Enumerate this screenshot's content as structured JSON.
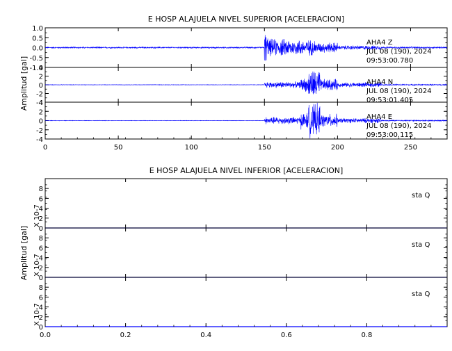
{
  "colors": {
    "trace": "#0000ff",
    "axis": "#000000",
    "background": "#ffffff"
  },
  "chart_data": [
    {
      "type": "line",
      "title": "E HOSP ALAJUELA NIVEL SUPERIOR [ACELERACION]",
      "ylabel": "Amplitud [gal]",
      "xlim": [
        0,
        275
      ],
      "x_ticks": [
        0,
        50,
        100,
        150,
        200,
        250
      ],
      "grid": false,
      "panels": [
        {
          "ylim": [
            -1,
            1
          ],
          "y_ticks": [
            "-1.0",
            "-0.5",
            "0.0",
            "0.5",
            "1.0"
          ],
          "label_lines": [
            "AHA4   Z",
            "JUL 08 (190), 2024",
            "09:53:00.780"
          ],
          "segments": [
            {
              "x": [
                0,
                150
              ],
              "amp": 0.04
            },
            {
              "x": [
                150,
                153
              ],
              "amp": 1.0
            },
            {
              "x": [
                153,
                168
              ],
              "amp": 0.5
            },
            {
              "x": [
                168,
                185
              ],
              "amp": 0.45
            },
            {
              "x": [
                185,
                200
              ],
              "amp": 0.3
            },
            {
              "x": [
                200,
                230
              ],
              "amp": 0.12
            },
            {
              "x": [
                230,
                275
              ],
              "amp": 0.05
            }
          ]
        },
        {
          "ylim": [
            -4,
            4
          ],
          "y_ticks": [
            "-4",
            "-2",
            "0",
            "2",
            "4"
          ],
          "label_lines": [
            "AHA4   N",
            "JUL 08 (190), 2024",
            "09:53:01.405"
          ],
          "segments": [
            {
              "x": [
                0,
                150
              ],
              "amp": 0.05
            },
            {
              "x": [
                150,
                175
              ],
              "amp": 0.8
            },
            {
              "x": [
                175,
                180
              ],
              "amp": 1.8
            },
            {
              "x": [
                180,
                188
              ],
              "amp": 4.0
            },
            {
              "x": [
                188,
                200
              ],
              "amp": 1.5
            },
            {
              "x": [
                200,
                230
              ],
              "amp": 0.6
            },
            {
              "x": [
                230,
                275
              ],
              "amp": 0.15
            }
          ]
        },
        {
          "ylim": [
            -4,
            4
          ],
          "y_ticks": [
            "-4",
            "-2",
            "0",
            "2",
            "4"
          ],
          "label_lines": [
            "AHA4   E",
            "JUL 08 (190), 2024",
            "09:53:00.115"
          ],
          "segments": [
            {
              "x": [
                0,
                150
              ],
              "amp": 0.05
            },
            {
              "x": [
                150,
                175
              ],
              "amp": 0.9
            },
            {
              "x": [
                175,
                180
              ],
              "amp": 2.0
            },
            {
              "x": [
                180,
                188
              ],
              "amp": 4.0
            },
            {
              "x": [
                188,
                200
              ],
              "amp": 1.6
            },
            {
              "x": [
                200,
                230
              ],
              "amp": 0.6
            },
            {
              "x": [
                230,
                275
              ],
              "amp": 0.15
            }
          ]
        }
      ]
    },
    {
      "type": "line",
      "title": "E HOSP ALAJUELA NIVEL INFERIOR [ACELERACION]",
      "ylabel": "Amplitud [gal]",
      "xlim": [
        0,
        1
      ],
      "x_ticks": [
        "0.0",
        "0.2",
        "0.4",
        "0.6",
        "0.8"
      ],
      "grid": false,
      "panels": [
        {
          "ylim": [
            0,
            10
          ],
          "y_ticks": [
            "0",
            "2",
            "4",
            "6",
            "8"
          ],
          "scale_label": "X 10-7",
          "label_lines": [
            "sta    Q"
          ],
          "values": [
            0,
            0
          ]
        },
        {
          "ylim": [
            0,
            10
          ],
          "y_ticks": [
            "0",
            "2",
            "4",
            "6",
            "8"
          ],
          "scale_label": "X 10-7",
          "label_lines": [
            "sta    Q"
          ],
          "values": [
            0,
            0
          ]
        },
        {
          "ylim": [
            0,
            10
          ],
          "y_ticks": [
            "0",
            "2",
            "4",
            "6",
            "8"
          ],
          "scale_label": "X 10-7",
          "label_lines": [
            "sta    Q"
          ],
          "values": [
            0,
            0
          ]
        }
      ]
    }
  ]
}
